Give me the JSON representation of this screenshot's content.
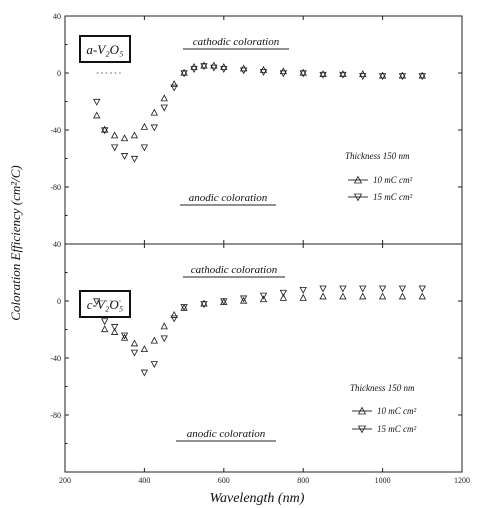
{
  "chart_data": [
    {
      "type": "scatter",
      "panel_label": "a-V₂O₅",
      "xlabel": "Wavelength (nm)",
      "ylabel": "Coloration Efficiency (cm²/C)",
      "xlim": [
        200,
        1200
      ],
      "ylim": [
        -120,
        40
      ],
      "x_ticks": [
        "200",
        "400",
        "600",
        "800",
        "1000",
        "1200"
      ],
      "y_ticks": [
        "40",
        "0",
        "-40",
        "-80"
      ],
      "y_tick_values": [
        40,
        0,
        -40,
        -80
      ],
      "grid": false,
      "reference_line": 0,
      "annotations": {
        "top": "cathodic coloration",
        "bottom": "anodic coloration"
      },
      "legend_title": "Thickness  150 nm",
      "legend_placement": "right",
      "series": [
        {
          "name": "10 mC cm²",
          "marker": "triangle-up",
          "x": [
            280,
            300,
            325,
            350,
            375,
            400,
            425,
            450,
            475,
            500,
            525,
            550,
            575,
            600,
            650,
            700,
            750,
            800,
            850,
            900,
            950,
            1000,
            1050,
            1100
          ],
          "y": [
            -30,
            -40,
            -44,
            -46,
            -44,
            -38,
            -28,
            -18,
            -8,
            0,
            4,
            5,
            5,
            4,
            3,
            2,
            1,
            0,
            -1,
            -1,
            -1,
            -2,
            -2,
            -2
          ]
        },
        {
          "name": "15 mC cm²",
          "marker": "triangle-down",
          "x": [
            280,
            300,
            325,
            350,
            375,
            400,
            425,
            450,
            475,
            500,
            525,
            550,
            575,
            600,
            650,
            700,
            750,
            800,
            850,
            900,
            950,
            1000,
            1050,
            1100
          ],
          "y": [
            -20,
            -40,
            -52,
            -58,
            -60,
            -52,
            -38,
            -24,
            -10,
            0,
            3,
            5,
            4,
            3,
            2,
            1,
            0,
            0,
            -1,
            -1,
            -2,
            -2,
            -2,
            -2
          ]
        }
      ]
    },
    {
      "type": "scatter",
      "panel_label": "c-V₂O₅",
      "xlabel": "Wavelength (nm)",
      "ylabel": "Coloration Efficiency (cm²/C)",
      "xlim": [
        200,
        1200
      ],
      "ylim": [
        -120,
        40
      ],
      "x_ticks": [
        "200",
        "400",
        "600",
        "800",
        "1000",
        "1200"
      ],
      "y_ticks": [
        "40",
        "0",
        "-40",
        "-80"
      ],
      "y_tick_values": [
        40,
        0,
        -40,
        -80
      ],
      "grid": false,
      "reference_line": 0,
      "annotations": {
        "top": "cathodic coloration",
        "bottom": "anodic coloration"
      },
      "legend_title": "Thickness  150 nm",
      "legend_placement": "bottom-right",
      "series": [
        {
          "name": "10 mC cm²",
          "marker": "triangle-up",
          "x": [
            300,
            325,
            350,
            375,
            400,
            425,
            450,
            475,
            500,
            550,
            600,
            650,
            700,
            750,
            800,
            850,
            900,
            950,
            1000,
            1050,
            1100
          ],
          "y": [
            -20,
            -22,
            -26,
            -30,
            -34,
            -28,
            -18,
            -10,
            -5,
            -2,
            -1,
            0,
            1,
            2,
            2,
            3,
            3,
            3,
            3,
            3,
            3
          ]
        },
        {
          "name": "15 mC cm²",
          "marker": "triangle-down",
          "x": [
            280,
            300,
            325,
            350,
            375,
            400,
            425,
            450,
            475,
            500,
            550,
            600,
            650,
            700,
            750,
            800,
            850,
            900,
            950,
            1000,
            1050,
            1100
          ],
          "y": [
            0,
            -14,
            -18,
            -24,
            -36,
            -50,
            -44,
            -26,
            -12,
            -4,
            -2,
            0,
            2,
            4,
            6,
            8,
            9,
            9,
            9,
            9,
            9,
            9
          ]
        }
      ]
    }
  ]
}
